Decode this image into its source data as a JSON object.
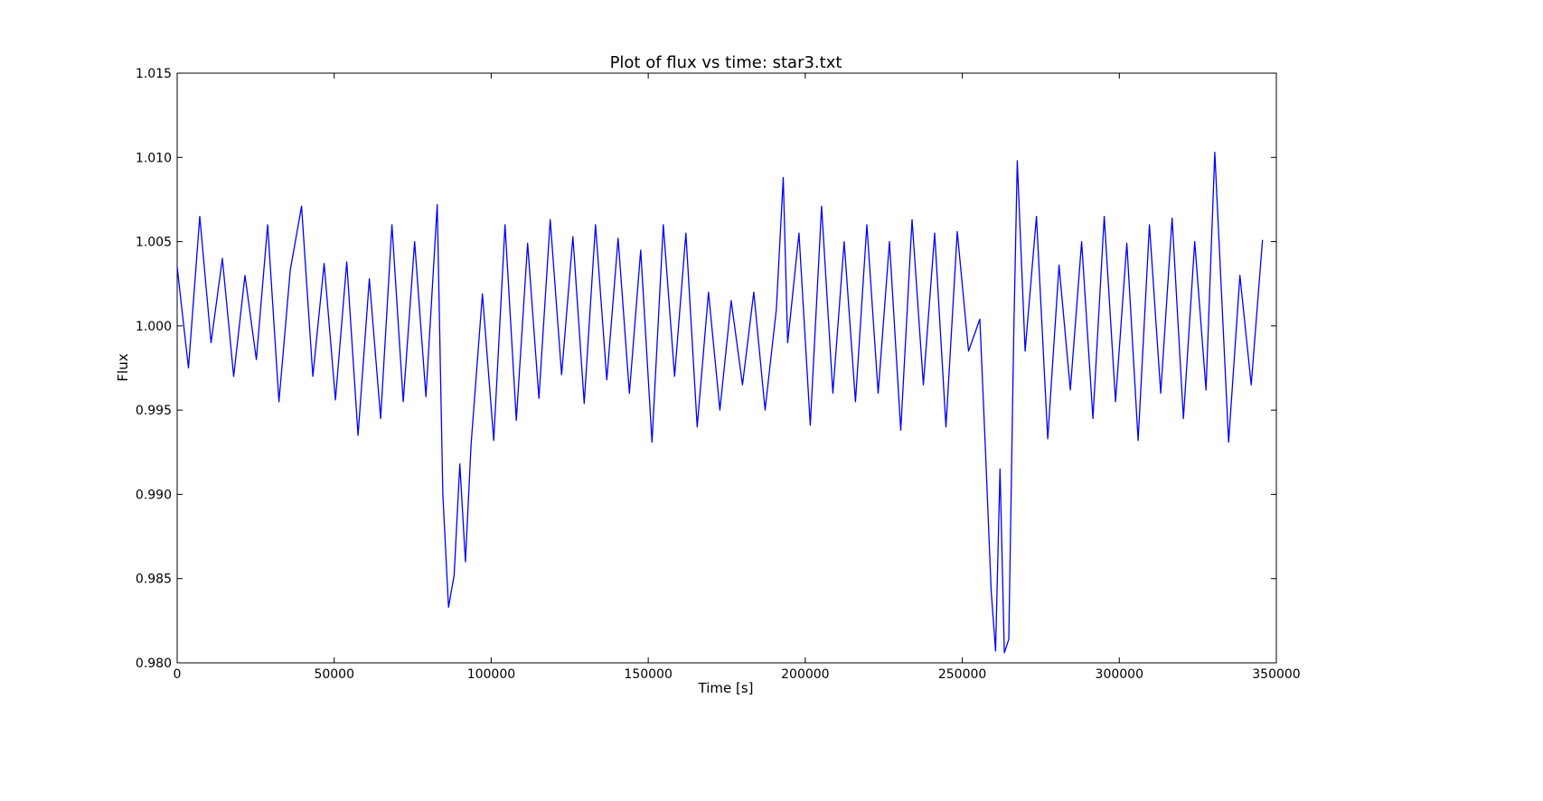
{
  "chart_data": {
    "type": "line",
    "title": "Plot of flux vs time: star3.txt",
    "xlabel": "Time [s]",
    "ylabel": "Flux",
    "xlim": [
      0,
      350000
    ],
    "ylim": [
      0.98,
      1.015
    ],
    "grid": false,
    "x_ticks": [
      0,
      50000,
      100000,
      150000,
      200000,
      250000,
      300000,
      350000
    ],
    "x_tick_labels": [
      "0",
      "50000",
      "100000",
      "150000",
      "200000",
      "250000",
      "300000",
      "350000"
    ],
    "y_ticks": [
      0.98,
      0.985,
      0.99,
      0.995,
      1.0,
      1.005,
      1.01,
      1.015
    ],
    "y_tick_labels": [
      "0.980",
      "0.985",
      "0.990",
      "0.995",
      "1.000",
      "1.005",
      "1.010",
      "1.015"
    ],
    "series": [
      {
        "color": "#0000ff",
        "x": [
          0,
          3600,
          7200,
          10800,
          14400,
          18000,
          21600,
          25200,
          28800,
          32400,
          36000,
          39600,
          43200,
          46800,
          50400,
          54000,
          57600,
          61200,
          64800,
          68400,
          72000,
          75600,
          79200,
          82800,
          84600,
          86400,
          88200,
          90000,
          91800,
          93600,
          97200,
          100800,
          104400,
          108000,
          111600,
          115200,
          118800,
          122400,
          126000,
          129600,
          133200,
          136800,
          140400,
          144000,
          147600,
          151200,
          154800,
          158400,
          162000,
          165600,
          169200,
          172800,
          176400,
          180000,
          183600,
          187200,
          190800,
          193000,
          194400,
          198000,
          201600,
          205200,
          208800,
          212400,
          216000,
          219600,
          223200,
          226800,
          230400,
          234000,
          237600,
          241200,
          244800,
          248400,
          252000,
          255600,
          257400,
          259200,
          260600,
          262000,
          263400,
          264800,
          266400,
          267500,
          270000,
          273600,
          277200,
          280800,
          284400,
          288000,
          291600,
          295200,
          298800,
          302400,
          306000,
          309600,
          313200,
          316800,
          320400,
          324000,
          327600,
          330400,
          334800,
          338400,
          342000,
          345600
        ],
        "y": [
          1.0035,
          0.9975,
          1.0065,
          0.999,
          1.004,
          0.997,
          1.003,
          0.998,
          1.006,
          0.9955,
          1.0033,
          1.0071,
          0.997,
          1.0037,
          0.9956,
          1.0038,
          0.9935,
          1.0028,
          0.9945,
          1.006,
          0.9955,
          1.005,
          0.9958,
          1.0072,
          0.99,
          0.9833,
          0.9852,
          0.9918,
          0.986,
          0.993,
          1.0019,
          0.9932,
          1.006,
          0.9944,
          1.0049,
          0.9957,
          1.0063,
          0.9971,
          1.0053,
          0.9954,
          1.006,
          0.9968,
          1.0052,
          0.996,
          1.0045,
          0.9931,
          1.006,
          0.997,
          1.0055,
          0.994,
          1.002,
          0.995,
          1.0015,
          0.9965,
          1.002,
          0.995,
          1.001,
          1.0088,
          0.999,
          1.0055,
          0.9941,
          1.0071,
          0.996,
          1.005,
          0.9955,
          1.006,
          0.996,
          1.005,
          0.9938,
          1.0063,
          0.9965,
          1.0055,
          0.994,
          1.0056,
          0.9985,
          1.0004,
          0.9925,
          0.9843,
          0.9807,
          0.9915,
          0.9806,
          0.9814,
          0.9995,
          1.0098,
          0.9985,
          1.0065,
          0.9933,
          1.0036,
          0.9962,
          1.005,
          0.9945,
          1.0065,
          0.9955,
          1.0049,
          0.9932,
          1.006,
          0.996,
          1.0064,
          0.9945,
          1.005,
          0.9962,
          1.0103,
          0.9931,
          1.003,
          0.9965,
          1.0051
        ]
      }
    ]
  }
}
